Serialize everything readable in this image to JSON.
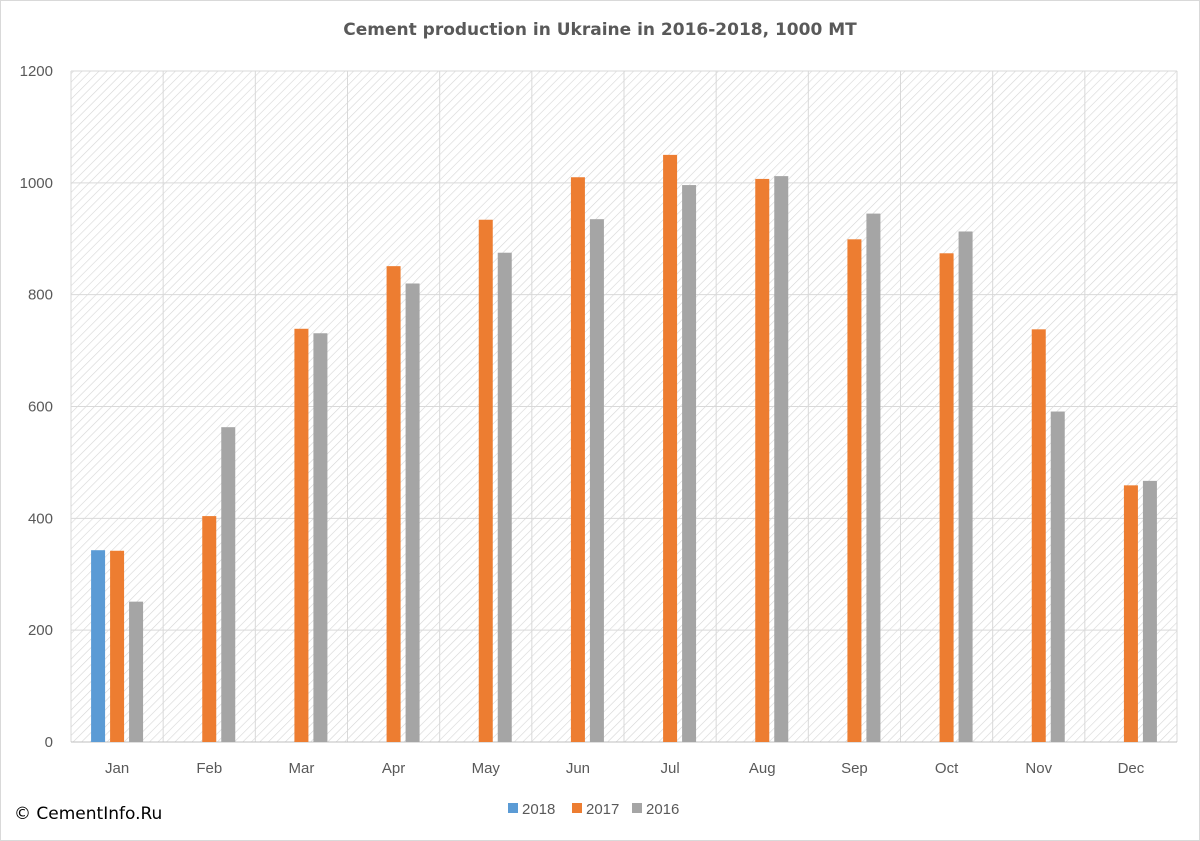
{
  "chart_data": {
    "type": "bar",
    "title": "Cement production in Ukraine in 2016-2018, 1000 MT",
    "xlabel": "",
    "ylabel": "",
    "ylim": [
      0,
      1200
    ],
    "yticks": [
      0,
      200,
      400,
      600,
      800,
      1000,
      1200
    ],
    "grid": true,
    "legend_position": "bottom",
    "categories": [
      "Jan",
      "Feb",
      "Mar",
      "Apr",
      "May",
      "Jun",
      "Jul",
      "Aug",
      "Sep",
      "Oct",
      "Nov",
      "Dec"
    ],
    "series": [
      {
        "name": "2018",
        "color": "#5b9bd5",
        "values": [
          343,
          null,
          null,
          null,
          null,
          null,
          null,
          null,
          null,
          null,
          null,
          null
        ]
      },
      {
        "name": "2017",
        "color": "#ed7d31",
        "values": [
          342,
          404,
          739,
          851,
          934,
          1010,
          1050,
          1007,
          899,
          874,
          738,
          459
        ]
      },
      {
        "name": "2016",
        "color": "#a5a5a5",
        "values": [
          251,
          563,
          731,
          820,
          875,
          935,
          996,
          1012,
          945,
          913,
          591,
          467
        ]
      }
    ]
  },
  "copyright": "© CementInfo.Ru"
}
